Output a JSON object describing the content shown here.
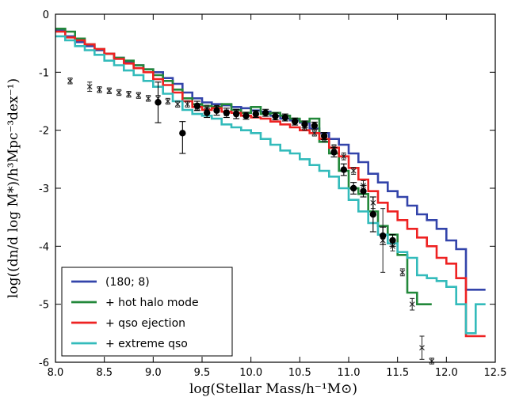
{
  "chart_data": {
    "type": "line",
    "title": "",
    "xlabel": "log(Stellar Mass/h⁻¹M⊙)",
    "ylabel": "log((dn/d log M*)/h³Mpc⁻³dex⁻¹)",
    "xlim": [
      8.0,
      12.5
    ],
    "ylim": [
      -6,
      0
    ],
    "xticks": [
      "8.0",
      "8.5",
      "9.0",
      "9.5",
      "10.0",
      "10.5",
      "11.0",
      "11.5",
      "12.0",
      "12.5"
    ],
    "yticks": [
      "-6",
      "-5",
      "-4",
      "-3",
      "-2",
      "-1",
      "0"
    ],
    "legend_position": "bottom-left",
    "series": [
      {
        "name": "(180; 8)",
        "color": "#3344aa",
        "x": [
          8.05,
          8.15,
          8.25,
          8.35,
          8.45,
          8.55,
          8.65,
          8.75,
          8.85,
          8.95,
          9.05,
          9.15,
          9.25,
          9.35,
          9.45,
          9.55,
          9.65,
          9.75,
          9.85,
          9.95,
          10.05,
          10.15,
          10.25,
          10.35,
          10.45,
          10.55,
          10.65,
          10.75,
          10.85,
          10.95,
          11.05,
          11.15,
          11.25,
          11.35,
          11.45,
          11.55,
          11.65,
          11.75,
          11.85,
          11.95,
          12.05,
          12.15,
          12.25,
          12.35
        ],
        "y": [
          -0.27,
          -0.38,
          -0.48,
          -0.55,
          -0.62,
          -0.68,
          -0.75,
          -0.82,
          -0.88,
          -0.95,
          -1.0,
          -1.1,
          -1.2,
          -1.35,
          -1.45,
          -1.52,
          -1.55,
          -1.57,
          -1.6,
          -1.62,
          -1.66,
          -1.68,
          -1.75,
          -1.8,
          -1.83,
          -1.87,
          -1.97,
          -2.05,
          -2.15,
          -2.25,
          -2.4,
          -2.55,
          -2.75,
          -2.9,
          -3.05,
          -3.15,
          -3.3,
          -3.45,
          -3.55,
          -3.7,
          -3.9,
          -4.05,
          -4.75,
          -4.75
        ]
      },
      {
        "name": "+ hot halo mode",
        "color": "#22883a",
        "x": [
          8.05,
          8.15,
          8.25,
          8.35,
          8.45,
          8.55,
          8.65,
          8.75,
          8.85,
          8.95,
          9.05,
          9.15,
          9.25,
          9.35,
          9.45,
          9.55,
          9.65,
          9.75,
          9.85,
          9.95,
          10.05,
          10.15,
          10.25,
          10.35,
          10.45,
          10.55,
          10.65,
          10.75,
          10.85,
          10.95,
          11.05,
          11.15,
          11.25,
          11.35,
          11.45,
          11.55,
          11.65,
          11.75,
          11.8
        ],
        "y": [
          -0.25,
          -0.3,
          -0.42,
          -0.52,
          -0.6,
          -0.68,
          -0.75,
          -0.8,
          -0.88,
          -0.95,
          -1.05,
          -1.15,
          -1.3,
          -1.45,
          -1.55,
          -1.58,
          -1.6,
          -1.55,
          -1.65,
          -1.7,
          -1.6,
          -1.72,
          -1.7,
          -1.75,
          -1.8,
          -1.85,
          -1.8,
          -2.2,
          -2.4,
          -2.7,
          -3.0,
          -3.1,
          -3.4,
          -3.65,
          -3.8,
          -4.15,
          -4.8,
          -5.0,
          -5.0
        ]
      },
      {
        "name": "+ qso ejection",
        "color": "#ee2222",
        "x": [
          8.05,
          8.15,
          8.25,
          8.35,
          8.45,
          8.55,
          8.65,
          8.75,
          8.85,
          8.95,
          9.05,
          9.15,
          9.25,
          9.35,
          9.45,
          9.55,
          9.65,
          9.75,
          9.85,
          9.95,
          10.05,
          10.15,
          10.25,
          10.35,
          10.45,
          10.55,
          10.65,
          10.75,
          10.85,
          10.95,
          11.05,
          11.15,
          11.25,
          11.35,
          11.45,
          11.55,
          11.65,
          11.75,
          11.85,
          11.95,
          12.05,
          12.15,
          12.25,
          12.35
        ],
        "y": [
          -0.3,
          -0.4,
          -0.45,
          -0.52,
          -0.6,
          -0.68,
          -0.77,
          -0.85,
          -0.93,
          -1.0,
          -1.12,
          -1.22,
          -1.35,
          -1.5,
          -1.6,
          -1.65,
          -1.62,
          -1.68,
          -1.7,
          -1.75,
          -1.78,
          -1.8,
          -1.85,
          -1.9,
          -1.95,
          -2.0,
          -2.05,
          -2.15,
          -2.3,
          -2.45,
          -2.65,
          -2.85,
          -3.05,
          -3.25,
          -3.4,
          -3.55,
          -3.7,
          -3.85,
          -4.0,
          -4.2,
          -4.3,
          -4.55,
          -5.55,
          -5.55
        ]
      },
      {
        "name": "+ extreme qso",
        "color": "#33bbbb",
        "x": [
          8.05,
          8.15,
          8.25,
          8.35,
          8.45,
          8.55,
          8.65,
          8.75,
          8.85,
          8.95,
          9.05,
          9.15,
          9.25,
          9.35,
          9.45,
          9.55,
          9.65,
          9.75,
          9.85,
          9.95,
          10.05,
          10.15,
          10.25,
          10.35,
          10.45,
          10.55,
          10.65,
          10.75,
          10.85,
          10.95,
          11.05,
          11.15,
          11.25,
          11.35,
          11.45,
          11.55,
          11.65,
          11.75,
          11.85,
          11.95,
          12.05,
          12.15,
          12.25,
          12.35
        ],
        "y": [
          -0.38,
          -0.45,
          -0.55,
          -0.62,
          -0.7,
          -0.8,
          -0.88,
          -0.97,
          -1.05,
          -1.15,
          -1.25,
          -1.37,
          -1.5,
          -1.65,
          -1.72,
          -1.75,
          -1.8,
          -1.9,
          -1.95,
          -2.0,
          -2.05,
          -2.15,
          -2.25,
          -2.35,
          -2.4,
          -2.5,
          -2.6,
          -2.7,
          -2.8,
          -3.0,
          -3.2,
          -3.4,
          -3.6,
          -3.8,
          -3.95,
          -4.1,
          -4.2,
          -4.5,
          -4.55,
          -4.6,
          -4.7,
          -5.0,
          -5.5,
          -5.0
        ]
      }
    ],
    "observations": {
      "dots": {
        "x": [
          9.05,
          9.3,
          9.45,
          9.55,
          9.65,
          9.75,
          9.85,
          9.95,
          10.05,
          10.15,
          10.25,
          10.35,
          10.45,
          10.55,
          10.65,
          10.75,
          10.85,
          10.95,
          11.05,
          11.15,
          11.25,
          11.35,
          11.45
        ],
        "y": [
          -1.52,
          -2.05,
          -1.58,
          -1.7,
          -1.66,
          -1.7,
          -1.72,
          -1.75,
          -1.72,
          -1.7,
          -1.76,
          -1.78,
          -1.85,
          -1.9,
          -1.92,
          -2.1,
          -2.38,
          -2.68,
          -3.0,
          -3.05,
          -3.45,
          -3.82,
          -3.9
        ],
        "err_lo": [
          0.35,
          0.35,
          0.08,
          0.08,
          0.08,
          0.08,
          0.08,
          0.06,
          0.06,
          0.06,
          0.06,
          0.06,
          0.06,
          0.06,
          0.06,
          0.06,
          0.08,
          0.1,
          0.1,
          0.1,
          0.3,
          0.15,
          0.1
        ],
        "err_hi": [
          0.35,
          0.2,
          0.08,
          0.08,
          0.08,
          0.08,
          0.08,
          0.06,
          0.06,
          0.06,
          0.06,
          0.06,
          0.06,
          0.06,
          0.06,
          0.06,
          0.08,
          0.1,
          0.1,
          0.1,
          0.3,
          0.15,
          0.1
        ]
      },
      "crosses": {
        "x": [
          8.15,
          8.35,
          8.45,
          8.55,
          8.65,
          8.75,
          8.85,
          8.95,
          9.05,
          9.15,
          9.25,
          9.35,
          9.45,
          9.55,
          9.65,
          9.75,
          9.85,
          10.55,
          10.65,
          10.75,
          10.85,
          10.95,
          11.05,
          11.15,
          11.25,
          11.35,
          11.45,
          11.55,
          11.65,
          11.75,
          11.85
        ],
        "y": [
          -1.15,
          -1.25,
          -1.3,
          -1.32,
          -1.35,
          -1.38,
          -1.4,
          -1.45,
          -1.45,
          -1.5,
          -1.55,
          -1.55,
          -1.6,
          -1.62,
          -1.62,
          -1.7,
          -1.7,
          -1.95,
          -2.05,
          -2.15,
          -2.3,
          -2.45,
          -2.7,
          -2.95,
          -3.25,
          -3.9,
          -4.0,
          -4.45,
          -5.0,
          -5.75,
          -5.98
        ],
        "err": [
          0.05,
          0.08,
          0.05,
          0.05,
          0.05,
          0.05,
          0.05,
          0.05,
          0.05,
          0.05,
          0.05,
          0.05,
          0.05,
          0.05,
          0.05,
          0.05,
          0.05,
          0.05,
          0.05,
          0.05,
          0.05,
          0.06,
          0.06,
          0.08,
          0.1,
          0.55,
          0.08,
          0.06,
          0.1,
          0.2,
          0.05
        ]
      }
    }
  }
}
